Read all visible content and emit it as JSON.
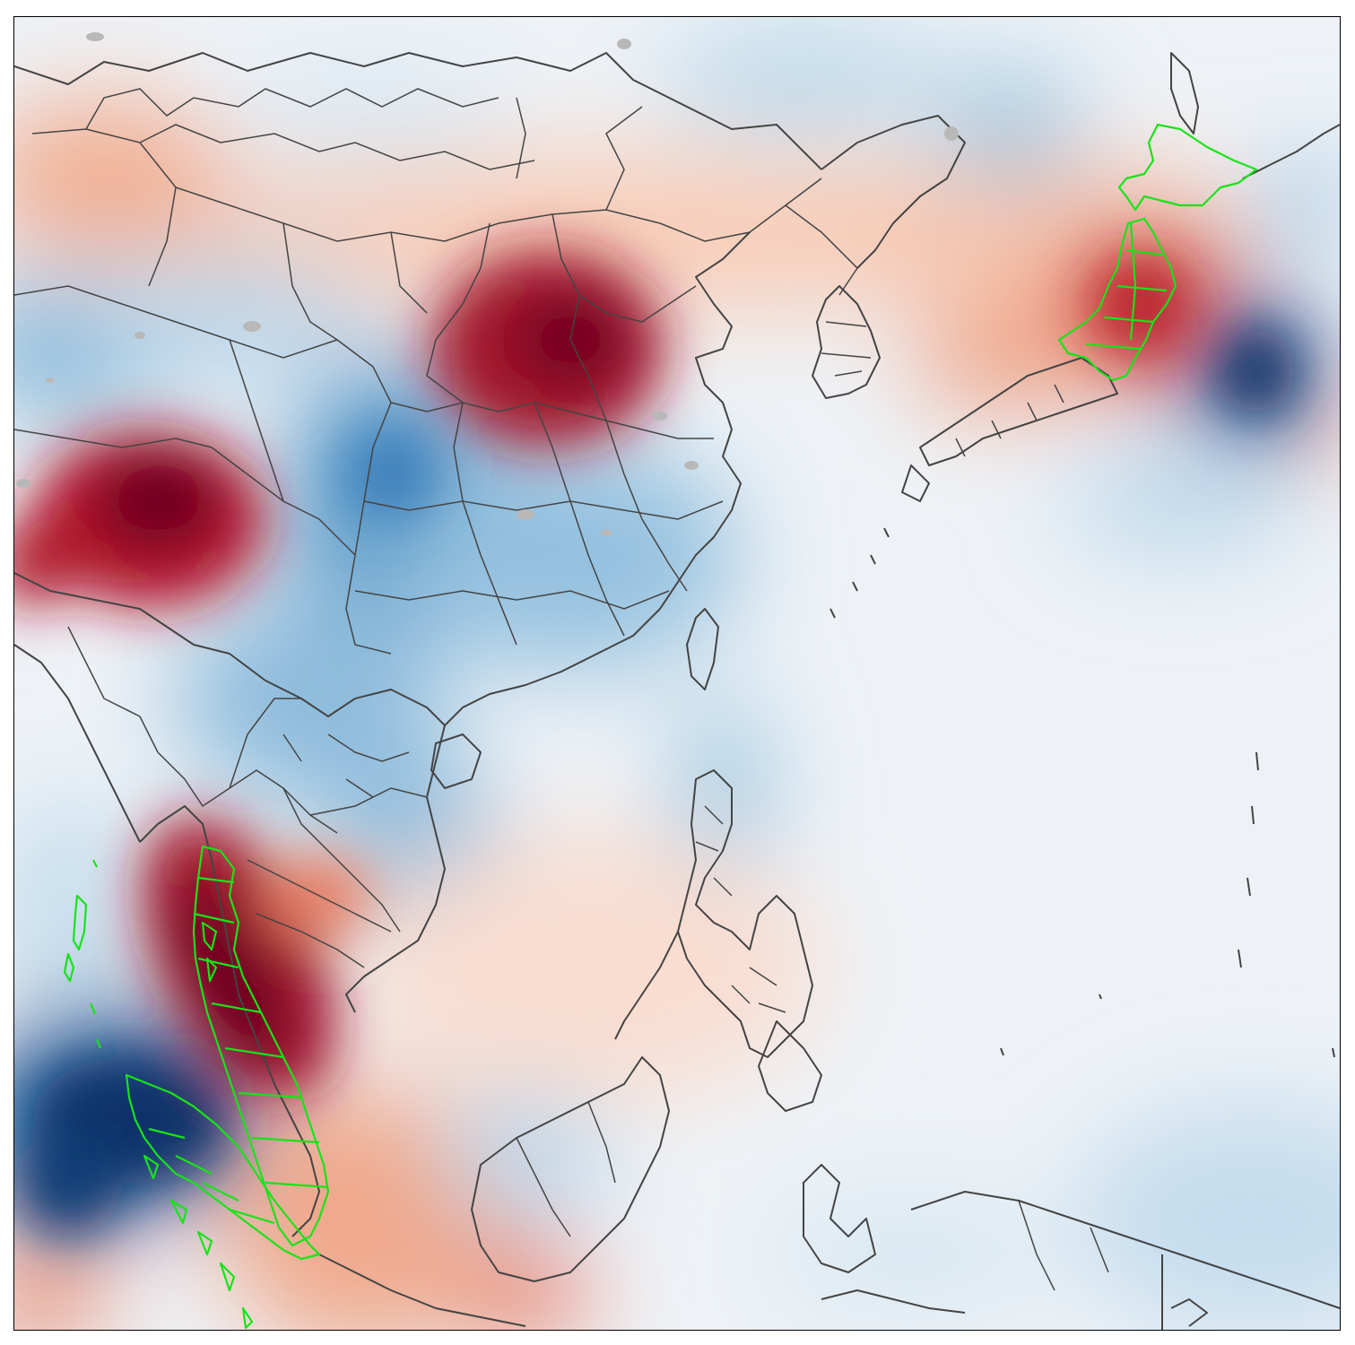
{
  "map": {
    "type": "heatmap",
    "colormap": [
      "#053061",
      "#2166ac",
      "#4393c3",
      "#92c5de",
      "#d1e5f0",
      "#f7f7f7",
      "#fddbc7",
      "#f4a582",
      "#d6604d",
      "#b2182b",
      "#67001f"
    ],
    "outline_color": "#444444",
    "highlight_color": "#18e318",
    "lake_color": "#b8b8b8",
    "highlighted_regions": [
      "japan-tohoku-hokkaido",
      "thailand-malay-peninsula",
      "sumatra-west-islands"
    ]
  }
}
